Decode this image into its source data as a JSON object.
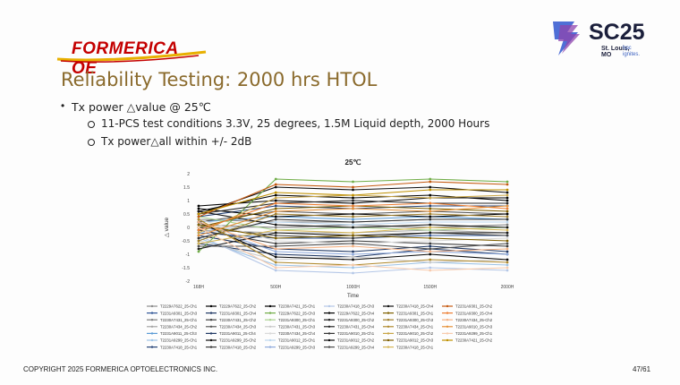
{
  "logo": {
    "text": "FORMERICA OE"
  },
  "conference": {
    "name": "SC25",
    "city": "St. Louis,",
    "city2": "MO",
    "tag1": "hpc",
    "tag2": "ignites."
  },
  "title": "Reliability Testing: 2000 hrs HTOL",
  "bullets": {
    "main": "Tx power △value @ 25℃",
    "sub1": "11-PCS test conditions 3.3V, 25 degrees, 1.5M Liquid depth, 2000 Hours",
    "sub2": "Tx power△all within +/- 2dB"
  },
  "footer": {
    "copyright": "COPYRIGHT 2025 FORMERICA OPTOELECTRONICS INC.",
    "page": "47/61"
  },
  "chart_data": {
    "type": "line",
    "title": "25℃",
    "xlabel": "Time",
    "ylabel": "△ value",
    "categories": [
      "168H",
      "500H",
      "1000H",
      "1500H",
      "2000H"
    ],
    "ylim": [
      -2,
      2
    ],
    "yticks": [
      -2,
      -1.5,
      -1,
      -0.5,
      0,
      0.5,
      1,
      1.5,
      2
    ],
    "grid": false,
    "legend_position": "bottom",
    "series": [
      {
        "name": "T2229A7622_25-Ch1",
        "color": "#8c8c8c",
        "values": [
          0.3,
          0.2,
          0.2,
          0.3,
          0.3
        ]
      },
      {
        "name": "T2231A9301_25-Ch3",
        "color": "#2f5597",
        "values": [
          -0.2,
          -0.4,
          -0.4,
          -0.3,
          -0.3
        ]
      },
      {
        "name": "T2230A7431_25-Ch1",
        "color": "#7f7f7f",
        "values": [
          0.1,
          0.0,
          0.1,
          0.0,
          0.1
        ]
      },
      {
        "name": "T2230A7434_25-Ch2",
        "color": "#a5a5a5",
        "values": [
          -0.1,
          -0.2,
          -0.2,
          -0.1,
          -0.2
        ]
      },
      {
        "name": "T2231A9011_25-Ch3",
        "color": "#5b9bd5",
        "values": [
          0.2,
          0.4,
          0.3,
          0.4,
          0.3
        ]
      },
      {
        "name": "T2231A9299_25-Ch1",
        "color": "#9dc3e6",
        "values": [
          -0.4,
          -1.4,
          -1.5,
          -1.3,
          -1.4
        ]
      },
      {
        "name": "T2230A7418_25-Ch1",
        "color": "#264478",
        "values": [
          0.4,
          0.8,
          0.7,
          0.8,
          0.8
        ]
      },
      {
        "name": "T2229A7622_25-Ch2",
        "color": "#000000",
        "values": [
          0.6,
          1.2,
          1.1,
          1.2,
          1.0
        ]
      },
      {
        "name": "T2231A9301_25-Ch4",
        "color": "#1f3864",
        "values": [
          -0.3,
          -0.8,
          -0.9,
          -0.7,
          -0.9
        ]
      },
      {
        "name": "T2230A7431_25-Ch2",
        "color": "#404040",
        "values": [
          0.0,
          -0.3,
          -0.4,
          -0.2,
          -0.3
        ]
      },
      {
        "name": "T2230A7434_25-Ch3",
        "color": "#595959",
        "values": [
          0.2,
          0.6,
          0.5,
          0.6,
          0.5
        ]
      },
      {
        "name": "T2231A9011_25-Ch4",
        "color": "#203864",
        "values": [
          -0.6,
          -1.0,
          -1.1,
          -0.8,
          -1.0
        ]
      },
      {
        "name": "T2231A9299_25-Ch2",
        "color": "#0d0d0d",
        "values": [
          0.5,
          1.5,
          1.4,
          1.5,
          1.3
        ]
      },
      {
        "name": "T2230A7418_25-Ch2",
        "color": "#3a3a3a",
        "values": [
          -0.1,
          -0.6,
          -0.5,
          -0.6,
          -0.7
        ]
      },
      {
        "name": "T2230A7421_25-Ch1",
        "color": "#000000",
        "values": [
          0.8,
          1.0,
          0.9,
          1.1,
          1.1
        ]
      },
      {
        "name": "T2229A7622_25-Ch3",
        "color": "#70ad47",
        "values": [
          -0.9,
          1.8,
          1.7,
          1.8,
          1.7
        ]
      },
      {
        "name": "T2231A9300_25-Ch1",
        "color": "#a9d18e",
        "values": [
          0.4,
          -0.1,
          0.0,
          -0.1,
          0.0
        ]
      },
      {
        "name": "T2230A7431_25-Ch3",
        "color": "#c9c9c9",
        "values": [
          -0.5,
          -1.2,
          -1.1,
          -1.3,
          -1.2
        ]
      },
      {
        "name": "T2230A7434_25-Ch4",
        "color": "#d9d9d9",
        "values": [
          0.3,
          -0.5,
          -0.6,
          -0.5,
          -0.4
        ]
      },
      {
        "name": "T2231A9012_25-Ch1",
        "color": "#bdd7ee",
        "values": [
          -0.2,
          0.2,
          0.1,
          0.2,
          0.2
        ]
      },
      {
        "name": "T2231A9299_25-Ch3",
        "color": "#8faadc",
        "values": [
          0.1,
          -0.9,
          -1.0,
          -0.9,
          -1.0
        ]
      },
      {
        "name": "T2230A7418_25-Ch3",
        "color": "#b4c7e7",
        "values": [
          -0.3,
          -1.6,
          -1.7,
          -1.5,
          -1.6
        ]
      },
      {
        "name": "T2229A7622_25-Ch4",
        "color": "#000000",
        "values": [
          0.7,
          0.4,
          0.5,
          0.4,
          0.5
        ]
      },
      {
        "name": "T2231A9300_25-Ch2",
        "color": "#1a1a1a",
        "values": [
          -0.8,
          -0.2,
          -0.3,
          -0.2,
          -0.2
        ]
      },
      {
        "name": "T2230A7431_25-Ch4",
        "color": "#262626",
        "values": [
          0.5,
          0.9,
          1.0,
          0.9,
          0.9
        ]
      },
      {
        "name": "T2231A9010_25-Ch1",
        "color": "#333333",
        "values": [
          -0.4,
          0.3,
          0.2,
          0.3,
          0.3
        ]
      },
      {
        "name": "T2231A9012_25-Ch2",
        "color": "#0a0a0a",
        "values": [
          0.2,
          -1.1,
          -1.2,
          -1.0,
          -1.2
        ]
      },
      {
        "name": "T2231A9299_25-Ch4",
        "color": "#4d4d4d",
        "values": [
          -0.7,
          -0.7,
          -0.6,
          -0.8,
          -0.6
        ]
      },
      {
        "name": "T2230A7418_25-Ch4",
        "color": "#111111",
        "values": [
          0.6,
          0.1,
          0.0,
          0.1,
          0.0
        ]
      },
      {
        "name": "T2231A9301_25-Ch1",
        "color": "#7f6000",
        "values": [
          0.0,
          0.7,
          0.8,
          0.7,
          0.6
        ]
      },
      {
        "name": "T2231A9300_25-Ch3",
        "color": "#9e7d2a",
        "values": [
          -0.5,
          0.5,
          0.4,
          0.5,
          0.4
        ]
      },
      {
        "name": "T2230A7434_25-Ch1",
        "color": "#b08a2e",
        "values": [
          0.3,
          -1.3,
          -1.4,
          -1.2,
          -1.3
        ]
      },
      {
        "name": "T2231A9010_25-Ch2",
        "color": "#c9a545",
        "values": [
          -0.2,
          1.1,
          1.2,
          1.1,
          1.2
        ]
      },
      {
        "name": "T2231A9012_25-Ch3",
        "color": "#806000",
        "values": [
          0.1,
          -0.4,
          -0.3,
          -0.4,
          -0.5
        ]
      },
      {
        "name": "T2230A7418_25-Ch1",
        "color": "#d6b656",
        "values": [
          -0.6,
          -0.1,
          -0.2,
          0.0,
          -0.1
        ]
      },
      {
        "name": "T2231A9301_25-Ch2",
        "color": "#c55a11",
        "values": [
          0.4,
          1.6,
          1.5,
          1.7,
          1.6
        ]
      },
      {
        "name": "T2231A9300_25-Ch4",
        "color": "#ed7d31",
        "values": [
          -0.1,
          0.9,
          0.8,
          0.9,
          0.7
        ]
      },
      {
        "name": "T2230A7434_25-Ch2",
        "color": "#f4b183",
        "values": [
          0.2,
          -0.8,
          -0.7,
          -0.9,
          -0.8
        ]
      },
      {
        "name": "T2231A9010_25-Ch3",
        "color": "#e69138",
        "values": [
          -0.3,
          0.6,
          0.7,
          0.6,
          0.8
        ]
      },
      {
        "name": "T2231A9299_25-Ch1",
        "color": "#f8cbad",
        "values": [
          0.0,
          -1.5,
          -1.4,
          -1.6,
          -1.5
        ]
      },
      {
        "name": "T2230A7421_25-Ch2",
        "color": "#bf9000",
        "values": [
          0.5,
          1.3,
          1.2,
          1.4,
          1.4
        ]
      }
    ]
  }
}
